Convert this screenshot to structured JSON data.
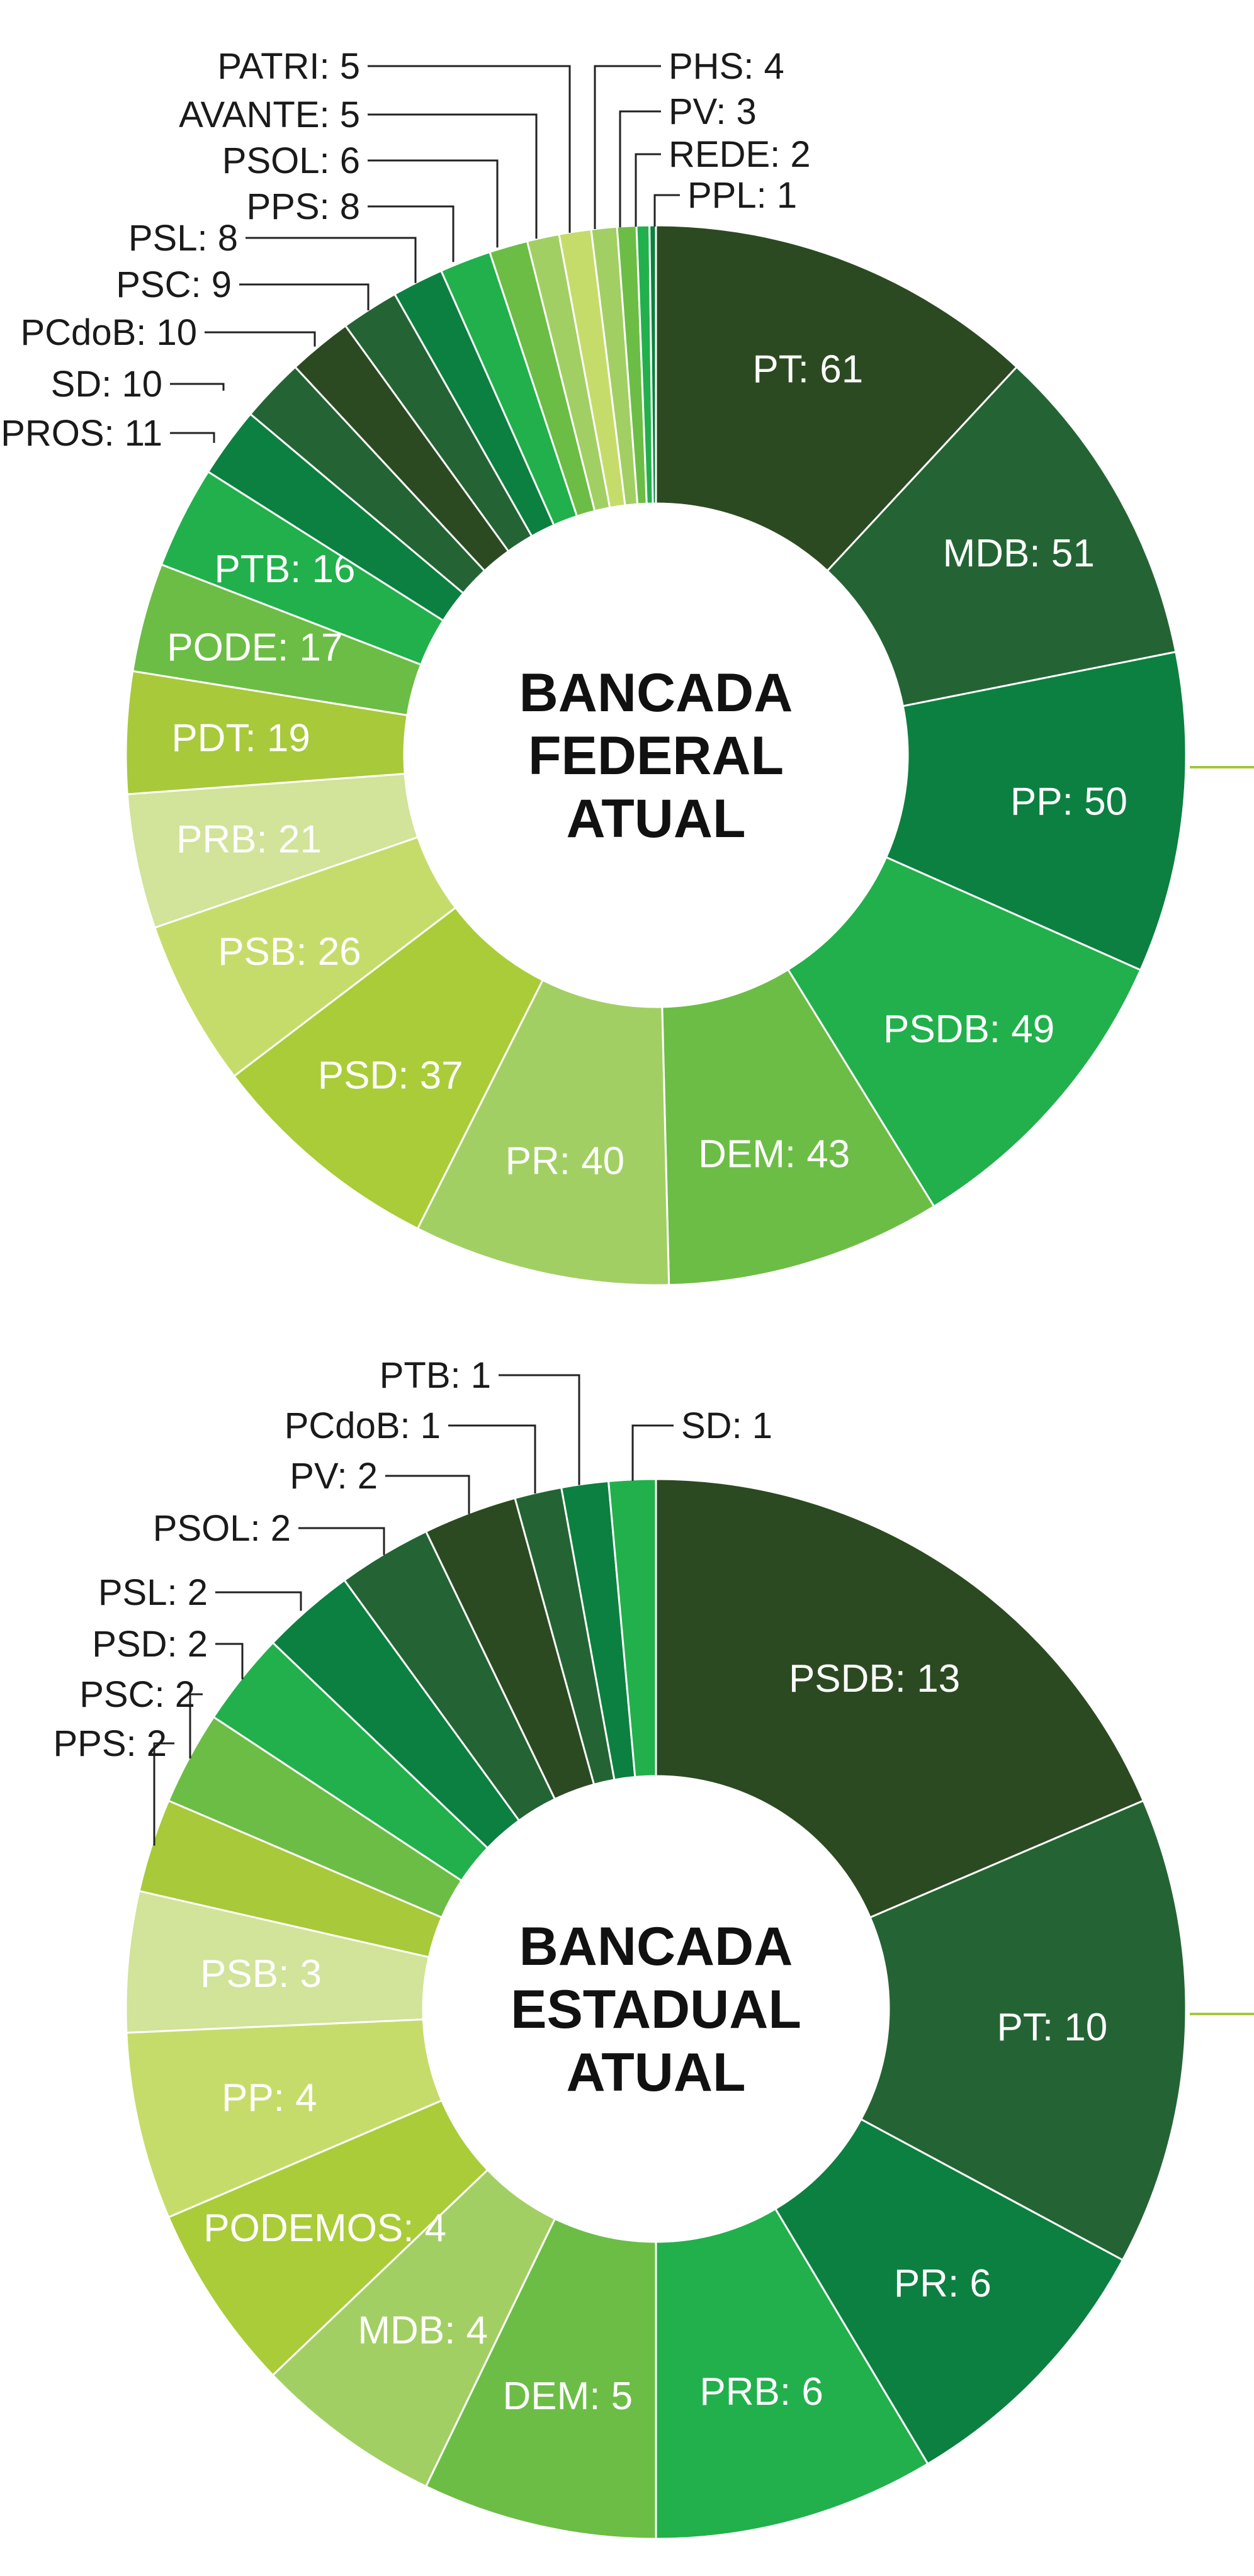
{
  "chart_data": [
    {
      "type": "pie",
      "title_lines": [
        "BANCADA",
        "FEDERAL",
        "ATUAL"
      ],
      "slices": [
        {
          "label": "PT",
          "value": 61,
          "color": "#2c4a22",
          "text": "PT: 61"
        },
        {
          "label": "MDB",
          "value": 51,
          "color": "#246434",
          "text": "MDB: 51"
        },
        {
          "label": "PP",
          "value": 50,
          "color": "#0c8040",
          "text": "PP: 50"
        },
        {
          "label": "PSDB",
          "value": 49,
          "color": "#22b04c",
          "text": "PSDB: 49"
        },
        {
          "label": "DEM",
          "value": 43,
          "color": "#6cbd45",
          "text": "DEM: 43"
        },
        {
          "label": "PR",
          "value": 40,
          "color": "#a2cf63",
          "text": "PR: 40"
        },
        {
          "label": "PSD",
          "value": 37,
          "color": "#aacc38",
          "text": "PSD: 37"
        },
        {
          "label": "PSB",
          "value": 26,
          "color": "#c6dc6a",
          "text": "PSB: 26"
        },
        {
          "label": "PRB",
          "value": 21,
          "color": "#d2e39a",
          "text": "PRB: 21"
        },
        {
          "label": "PDT",
          "value": 19,
          "color": "#a8c93a",
          "text": "PDT: 19"
        },
        {
          "label": "PODE",
          "value": 17,
          "color": "#6cbd45",
          "text": "PODE: 17"
        },
        {
          "label": "PTB",
          "value": 16,
          "color": "#22b04c",
          "text": "PTB: 16"
        },
        {
          "label": "PROS",
          "value": 11,
          "color": "#0c8040",
          "text": "PROS: 11"
        },
        {
          "label": "SD",
          "value": 10,
          "color": "#246434",
          "text": "SD: 10"
        },
        {
          "label": "PCdoB",
          "value": 10,
          "color": "#2c4a22",
          "text": "PCdoB: 10"
        },
        {
          "label": "PSC",
          "value": 9,
          "color": "#246434",
          "text": "PSC: 9"
        },
        {
          "label": "PSL",
          "value": 8,
          "color": "#0c8040",
          "text": "PSL: 8"
        },
        {
          "label": "PPS",
          "value": 8,
          "color": "#22b04c",
          "text": "PPS: 8"
        },
        {
          "label": "PSOL",
          "value": 6,
          "color": "#6cbd45",
          "text": "PSOL: 6"
        },
        {
          "label": "AVANTE",
          "value": 5,
          "color": "#a2cf63",
          "text": "AVANTE: 5"
        },
        {
          "label": "PATRI",
          "value": 5,
          "color": "#c6dc6a",
          "text": "PATRI: 5"
        },
        {
          "label": "PHS",
          "value": 4,
          "color": "#a2cf63",
          "text": "PHS: 4"
        },
        {
          "label": "PV",
          "value": 3,
          "color": "#6cbd45",
          "text": "PV: 3"
        },
        {
          "label": "REDE",
          "value": 2,
          "color": "#22b04c",
          "text": "REDE: 2"
        },
        {
          "label": "PPL",
          "value": 1,
          "color": "#0c8040",
          "text": "PPL: 1"
        }
      ]
    },
    {
      "type": "pie",
      "title_lines": [
        "BANCADA",
        "ESTADUAL",
        "ATUAL"
      ],
      "slices": [
        {
          "label": "PSDB",
          "value": 13,
          "color": "#2c4a22",
          "text": "PSDB: 13"
        },
        {
          "label": "PT",
          "value": 10,
          "color": "#246434",
          "text": "PT: 10"
        },
        {
          "label": "PR",
          "value": 6,
          "color": "#0c8040",
          "text": "PR: 6"
        },
        {
          "label": "PRB",
          "value": 6,
          "color": "#22b04c",
          "text": "PRB: 6"
        },
        {
          "label": "DEM",
          "value": 5,
          "color": "#6cbd45",
          "text": "DEM: 5"
        },
        {
          "label": "MDB",
          "value": 4,
          "color": "#a2cf63",
          "text": "MDB: 4"
        },
        {
          "label": "PODEMOS",
          "value": 4,
          "color": "#aacc38",
          "text": "PODEMOS: 4"
        },
        {
          "label": "PP",
          "value": 4,
          "color": "#c6dc6a",
          "text": "PP: 4"
        },
        {
          "label": "PSB",
          "value": 3,
          "color": "#d2e39a",
          "text": "PSB: 3"
        },
        {
          "label": "PPS",
          "value": 2,
          "color": "#a8c93a",
          "text": "PPS: 2"
        },
        {
          "label": "PSC",
          "value": 2,
          "color": "#6cbd45",
          "text": "PSC: 2"
        },
        {
          "label": "PSD",
          "value": 2,
          "color": "#22b04c",
          "text": "PSD: 2"
        },
        {
          "label": "PSL",
          "value": 2,
          "color": "#0c8040",
          "text": "PSL: 2"
        },
        {
          "label": "PSOL",
          "value": 2,
          "color": "#246434",
          "text": "PSOL: 2"
        },
        {
          "label": "PV",
          "value": 2,
          "color": "#2c4a22",
          "text": "PV: 2"
        },
        {
          "label": "PCdoB",
          "value": 1,
          "color": "#246434",
          "text": "PCdoB: 1"
        },
        {
          "label": "PTB",
          "value": 1,
          "color": "#0c8040",
          "text": "PTB: 1"
        },
        {
          "label": "SD",
          "value": 1,
          "color": "#22b04c",
          "text": "SD: 1"
        }
      ]
    }
  ]
}
